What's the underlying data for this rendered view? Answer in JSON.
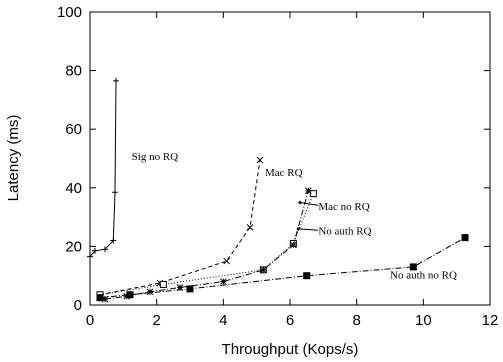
{
  "chart_data": {
    "type": "line",
    "xlabel": "Throughput (Kops/s)",
    "ylabel": "Latency (ms)",
    "xlim": [
      0,
      12
    ],
    "ylim": [
      0,
      100
    ],
    "xticks": [
      "0",
      "2",
      "4",
      "6",
      "8",
      "10",
      "12"
    ],
    "yticks": [
      "0",
      "20",
      "40",
      "60",
      "80",
      "100"
    ],
    "grid": false,
    "legend": "inline labels",
    "series": [
      {
        "name": "Sig no RQ",
        "marker": "plus",
        "line": "solid",
        "x": [
          0.0,
          0.15,
          0.45,
          0.7,
          0.75,
          0.78
        ],
        "y": [
          16.5,
          18.5,
          19.0,
          22.0,
          38.5,
          76.5
        ]
      },
      {
        "name": "Mac RQ",
        "marker": "x",
        "line": "dashed",
        "x": [
          0.3,
          2.1,
          4.1,
          4.8,
          5.1
        ],
        "y": [
          3.5,
          7.5,
          15.0,
          26.5,
          49.5
        ]
      },
      {
        "name": "Mac no RQ",
        "marker": "square",
        "line": "dotted",
        "x": [
          0.3,
          2.2,
          5.2,
          6.1,
          6.7
        ],
        "y": [
          3.5,
          7.0,
          12.0,
          21.0,
          38.0
        ]
      },
      {
        "name": "No auth RQ",
        "marker": "star",
        "line": "dash-dot",
        "x": [
          0.45,
          1.1,
          1.8,
          2.7,
          4.0,
          5.2,
          6.1,
          6.55
        ],
        "y": [
          2.0,
          3.0,
          4.5,
          6.0,
          8.0,
          12.0,
          20.5,
          39.0
        ]
      },
      {
        "name": "No auth no RQ",
        "marker": "filled-square",
        "line": "dash-dot",
        "x": [
          0.3,
          1.2,
          3.0,
          6.5,
          9.7,
          11.25
        ],
        "y": [
          2.5,
          3.5,
          5.5,
          10.0,
          13.0,
          23.0
        ]
      }
    ],
    "annotations": [
      {
        "text": "Sig no RQ",
        "x": 1.25,
        "y": 49.5
      },
      {
        "text": "Mac RQ",
        "x": 5.25,
        "y": 44.0
      },
      {
        "text": "Mac no RQ",
        "x": 6.85,
        "y": 32.5
      },
      {
        "text": "No auth RQ",
        "x": 6.85,
        "y": 24.0
      },
      {
        "text": "No auth no RQ",
        "x": 9.0,
        "y": 9.0
      }
    ]
  }
}
